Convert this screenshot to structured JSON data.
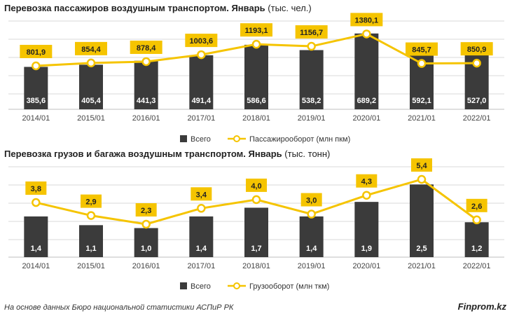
{
  "colors": {
    "bar": "#3b3b3b",
    "line": "#f5c400",
    "label_bg": "#f5c400",
    "label_text": "#222222",
    "bar_label": "#ffffff",
    "grid": "#d9d9d9"
  },
  "charts": [
    {
      "title_bold": "Перевозка пассажиров воздушным транспортом. Январь",
      "title_unit": "(тыс. чел.)"
    },
    {
      "title_bold": "Перевозка грузов и багажа воздушным транспортом. Январь",
      "title_unit": "(тыс. тонн)"
    }
  ],
  "chart_data": [
    {
      "type": "bar",
      "title": "Перевозка пассажиров воздушным транспортом. Январь (тыс. чел.)",
      "categories": [
        "2014/01",
        "2015/01",
        "2016/01",
        "2017/01",
        "2018/01",
        "2019/01",
        "2020/01",
        "2021/01",
        "2022/01"
      ],
      "series": [
        {
          "name": "Всего",
          "type": "bar",
          "values": [
            385.6,
            405.4,
            441.3,
            491.4,
            586.6,
            538.2,
            689.2,
            592.1,
            527.0
          ],
          "labels": [
            "385,6",
            "405,4",
            "441,3",
            "491,4",
            "586,6",
            "538,2",
            "689,2",
            "592,1",
            "527,0"
          ]
        },
        {
          "name": "Пассажирооборот (млн пкм)",
          "type": "line",
          "values": [
            801.9,
            854.4,
            878.4,
            1003.6,
            1193.1,
            1156.7,
            1380.1,
            845.7,
            850.9
          ],
          "labels": [
            "801,9",
            "854,4",
            "878,4",
            "1003,6",
            "1193,1",
            "1156,7",
            "1380,1",
            "845,7",
            "850,9"
          ]
        }
      ],
      "legend": "bottom",
      "grid": true
    },
    {
      "type": "bar",
      "title": "Перевозка грузов и багажа воздушным транспортом. Январь (тыс. тонн)",
      "categories": [
        "2014/01",
        "2015/01",
        "2016/01",
        "2017/01",
        "2018/01",
        "2019/01",
        "2020/01",
        "2021/01",
        "2022/01"
      ],
      "series": [
        {
          "name": "Всего",
          "type": "bar",
          "values": [
            1.4,
            1.1,
            1.0,
            1.4,
            1.7,
            1.4,
            1.9,
            2.5,
            1.2
          ],
          "labels": [
            "1,4",
            "1,1",
            "1,0",
            "1,4",
            "1,7",
            "1,4",
            "1,9",
            "2,5",
            "1,2"
          ]
        },
        {
          "name": "Грузооборот (млн ткм)",
          "type": "line",
          "values": [
            3.8,
            2.9,
            2.3,
            3.4,
            4.0,
            3.0,
            4.3,
            5.4,
            2.6
          ],
          "labels": [
            "3,8",
            "2,9",
            "2,3",
            "3,4",
            "4,0",
            "3,0",
            "4,3",
            "5,4",
            "2,6"
          ]
        }
      ],
      "legend": "bottom",
      "grid": true
    }
  ],
  "footer": {
    "source": "На основе данных Бюро национальной статистики АСПиР РК",
    "brand": "Finprom.kz"
  }
}
